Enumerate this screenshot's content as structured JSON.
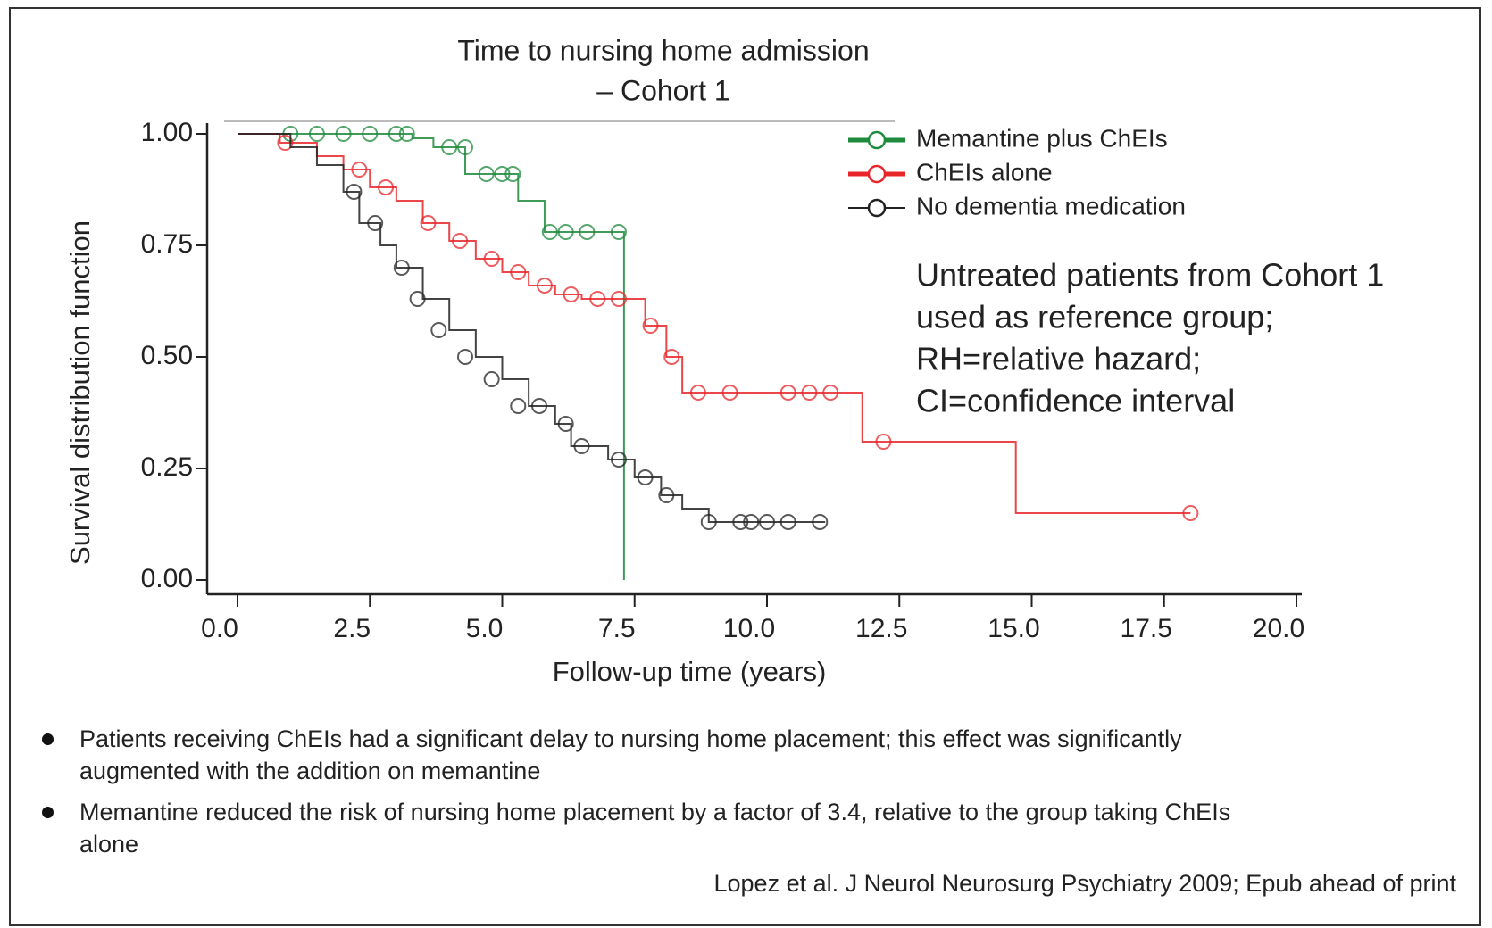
{
  "chart_data": {
    "type": "step",
    "title": [
      "Time to nursing home admission",
      "– Cohort 1"
    ],
    "xlabel": "Follow-up time (years)",
    "ylabel": "Survival distribution function",
    "xlim": [
      0,
      20
    ],
    "ylim": [
      0,
      1
    ],
    "xticks": [
      {
        "value": 0,
        "label": "0.0"
      },
      2.5,
      {
        "value": 5,
        "label": "5.0"
      },
      7.5,
      {
        "value": 10,
        "label": "10.0"
      },
      12.5,
      {
        "value": 15,
        "label": "15.0"
      },
      17.5,
      {
        "value": 20,
        "label": "20.0"
      }
    ],
    "yticks": [
      {
        "value": 0,
        "label": "0.00"
      },
      {
        "value": 0.25,
        "label": "0.25"
      },
      {
        "value": 0.5,
        "label": "0.50"
      },
      {
        "value": 0.75,
        "label": "0.75"
      },
      {
        "value": 1,
        "label": "1.00"
      }
    ],
    "legend": "upper right",
    "annotation": [
      "Untreated patients from Cohort 1",
      "used as reference group;",
      "RH=relative hazard;",
      "CI=confidence interval"
    ],
    "series": [
      {
        "name": "Memantine plus ChEIs",
        "color": "#1e8a3c",
        "x": [
          0,
          3.3,
          3.7,
          4.3,
          5.3,
          5.8,
          7.3
        ],
        "values": [
          1.0,
          0.99,
          0.97,
          0.91,
          0.85,
          0.78,
          0.0
        ],
        "censor_x": [
          1.0,
          1.5,
          2.0,
          2.5,
          3.0,
          3.2,
          4.0,
          4.3,
          4.7,
          5.0,
          5.2,
          5.9,
          6.2,
          6.6,
          7.2
        ],
        "censor_values": [
          1.0,
          1.0,
          1.0,
          1.0,
          1.0,
          1.0,
          0.97,
          0.97,
          0.91,
          0.91,
          0.91,
          0.78,
          0.78,
          0.78,
          0.78
        ]
      },
      {
        "name": "ChEIs alone",
        "color": "#e8262a",
        "x": [
          0,
          0.8,
          1.5,
          2.0,
          2.5,
          3.0,
          3.5,
          4.0,
          4.5,
          5.0,
          5.5,
          6.0,
          6.5,
          7.7,
          8.1,
          8.4,
          11.8,
          14.7,
          18.0
        ],
        "values": [
          1.0,
          0.98,
          0.95,
          0.92,
          0.88,
          0.85,
          0.8,
          0.76,
          0.72,
          0.69,
          0.66,
          0.64,
          0.63,
          0.57,
          0.5,
          0.42,
          0.31,
          0.15,
          0.15
        ],
        "censor_x": [
          0.9,
          2.3,
          2.8,
          3.6,
          4.2,
          4.8,
          5.3,
          5.8,
          6.3,
          6.8,
          7.2,
          7.8,
          8.2,
          8.7,
          9.3,
          10.4,
          10.8,
          11.2,
          12.2,
          18.0
        ],
        "censor_values": [
          0.98,
          0.92,
          0.88,
          0.8,
          0.76,
          0.72,
          0.69,
          0.66,
          0.64,
          0.63,
          0.63,
          0.57,
          0.5,
          0.42,
          0.42,
          0.42,
          0.42,
          0.42,
          0.31,
          0.15
        ]
      },
      {
        "name": "No dementia medication",
        "color": "#222222",
        "x": [
          0,
          1.0,
          1.5,
          2.0,
          2.3,
          2.7,
          3.0,
          3.5,
          4.0,
          4.5,
          5.0,
          5.5,
          6.0,
          6.3,
          7.0,
          7.5,
          8.0,
          8.4,
          8.9,
          11.1
        ],
        "values": [
          1.0,
          0.97,
          0.93,
          0.87,
          0.8,
          0.75,
          0.7,
          0.63,
          0.56,
          0.5,
          0.45,
          0.39,
          0.35,
          0.3,
          0.27,
          0.23,
          0.19,
          0.16,
          0.13,
          0.13
        ],
        "censor_x": [
          2.2,
          2.6,
          3.1,
          3.4,
          3.8,
          4.3,
          4.8,
          5.3,
          5.7,
          6.2,
          6.5,
          7.2,
          7.7,
          8.1,
          8.9,
          9.5,
          9.7,
          10.0,
          10.4,
          11.0
        ],
        "censor_values": [
          0.87,
          0.8,
          0.7,
          0.63,
          0.56,
          0.5,
          0.45,
          0.39,
          0.39,
          0.35,
          0.3,
          0.27,
          0.23,
          0.19,
          0.13,
          0.13,
          0.13,
          0.13,
          0.13,
          0.13
        ]
      }
    ]
  },
  "notes": [
    "Patients receiving ChEIs had a significant delay to nursing home placement; this effect was significantly augmented with the addition on memantine",
    "Memantine reduced the risk of nursing home placement by a factor of 3.4, relative to the group taking ChEIs alone"
  ],
  "citation": "Lopez et al. J Neurol Neurosurg Psychiatry 2009; Epub ahead of print"
}
